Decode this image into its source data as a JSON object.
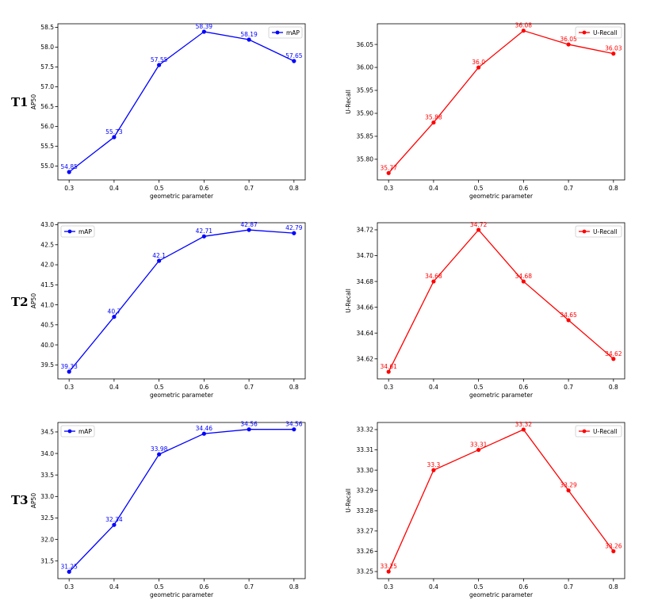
{
  "row_labels": [
    "T1",
    "T2",
    "T3"
  ],
  "chart_data": [
    {
      "type": "line",
      "row": "T1",
      "xlabel": "geometric parameter",
      "ylabel": "AP50",
      "x": [
        0.3,
        0.4,
        0.5,
        0.6,
        0.7,
        0.8
      ],
      "series": [
        {
          "name": "mAP",
          "values": [
            54.85,
            55.73,
            57.55,
            58.39,
            58.19,
            57.65
          ],
          "color": "#0000ff"
        }
      ],
      "data_labels": [
        "54.85",
        "55.73",
        "57.55",
        "58.39",
        "58.19",
        "57.65"
      ],
      "ylim": [
        54.65,
        58.59
      ],
      "yticks": [
        "55.0",
        "55.5",
        "56.0",
        "56.5",
        "57.0",
        "57.5",
        "58.0",
        "58.5"
      ],
      "xticks": [
        "0.3",
        "0.4",
        "0.5",
        "0.6",
        "0.7",
        "0.8"
      ],
      "legend": "top-right"
    },
    {
      "type": "line",
      "row": "T1",
      "xlabel": "geometric parameter",
      "ylabel": "U-Recall",
      "x": [
        0.3,
        0.4,
        0.5,
        0.6,
        0.7,
        0.8
      ],
      "series": [
        {
          "name": "U-Recall",
          "values": [
            35.77,
            35.88,
            36.0,
            36.08,
            36.05,
            36.03
          ],
          "color": "#ff0000"
        }
      ],
      "data_labels": [
        "35.77",
        "35.88",
        "36.0",
        "36.08",
        "36.05",
        "36.03"
      ],
      "ylim": [
        35.755,
        36.095
      ],
      "yticks": [
        "35.80",
        "35.85",
        "35.90",
        "35.95",
        "36.00",
        "36.05"
      ],
      "xticks": [
        "0.3",
        "0.4",
        "0.5",
        "0.6",
        "0.7",
        "0.8"
      ],
      "legend": "top-right"
    },
    {
      "type": "line",
      "row": "T2",
      "xlabel": "geometric parameter",
      "ylabel": "AP50",
      "x": [
        0.3,
        0.4,
        0.5,
        0.6,
        0.7,
        0.8
      ],
      "series": [
        {
          "name": "mAP",
          "values": [
            39.33,
            40.7,
            42.1,
            42.71,
            42.87,
            42.79
          ],
          "color": "#0000ff"
        }
      ],
      "data_labels": [
        "39.33",
        "40.7",
        "42.1",
        "42.71",
        "42.87",
        "42.79"
      ],
      "ylim": [
        39.15,
        43.05
      ],
      "yticks": [
        "39.5",
        "40.0",
        "40.5",
        "41.0",
        "41.5",
        "42.0",
        "42.5",
        "43.0"
      ],
      "xticks": [
        "0.3",
        "0.4",
        "0.5",
        "0.6",
        "0.7",
        "0.8"
      ],
      "legend": "top-left"
    },
    {
      "type": "line",
      "row": "T2",
      "xlabel": "geometric parameter",
      "ylabel": "U-Recall",
      "x": [
        0.3,
        0.4,
        0.5,
        0.6,
        0.7,
        0.8
      ],
      "series": [
        {
          "name": "U-Recall",
          "values": [
            34.61,
            34.68,
            34.72,
            34.68,
            34.65,
            34.62
          ],
          "color": "#ff0000"
        }
      ],
      "data_labels": [
        "34.61",
        "34.68",
        "34.72",
        "34.68",
        "34.65",
        "34.62"
      ],
      "ylim": [
        34.6045,
        34.7255
      ],
      "yticks": [
        "34.62",
        "34.64",
        "34.66",
        "34.68",
        "34.70",
        "34.72"
      ],
      "xticks": [
        "0.3",
        "0.4",
        "0.5",
        "0.6",
        "0.7",
        "0.8"
      ],
      "legend": "top-right"
    },
    {
      "type": "line",
      "row": "T3",
      "xlabel": "geometric parameter",
      "ylabel": "AP50",
      "x": [
        0.3,
        0.4,
        0.5,
        0.6,
        0.7,
        0.8
      ],
      "series": [
        {
          "name": "mAP",
          "values": [
            31.25,
            32.34,
            33.98,
            34.46,
            34.56,
            34.56
          ],
          "color": "#0000ff"
        }
      ],
      "data_labels": [
        "31.25",
        "32.34",
        "33.98",
        "34.46",
        "34.56",
        "34.56"
      ],
      "ylim": [
        31.09,
        34.72
      ],
      "yticks": [
        "31.5",
        "32.0",
        "32.5",
        "33.0",
        "33.5",
        "34.0",
        "34.5"
      ],
      "xticks": [
        "0.3",
        "0.4",
        "0.5",
        "0.6",
        "0.7",
        "0.8"
      ],
      "legend": "top-left"
    },
    {
      "type": "line",
      "row": "T3",
      "xlabel": "geometric parameter",
      "ylabel": "U-Recall",
      "x": [
        0.3,
        0.4,
        0.5,
        0.6,
        0.7,
        0.8
      ],
      "series": [
        {
          "name": "U-Recall",
          "values": [
            33.25,
            33.3,
            33.31,
            33.32,
            33.29,
            33.26
          ],
          "color": "#ff0000"
        }
      ],
      "data_labels": [
        "33.25",
        "33.3",
        "33.31",
        "33.32",
        "33.29",
        "33.26"
      ],
      "ylim": [
        33.2465,
        33.3235
      ],
      "yticks": [
        "33.25",
        "33.26",
        "33.27",
        "33.28",
        "33.29",
        "33.30",
        "33.31",
        "33.32"
      ],
      "xticks": [
        "0.3",
        "0.4",
        "0.5",
        "0.6",
        "0.7",
        "0.8"
      ],
      "legend": "top-right"
    }
  ]
}
